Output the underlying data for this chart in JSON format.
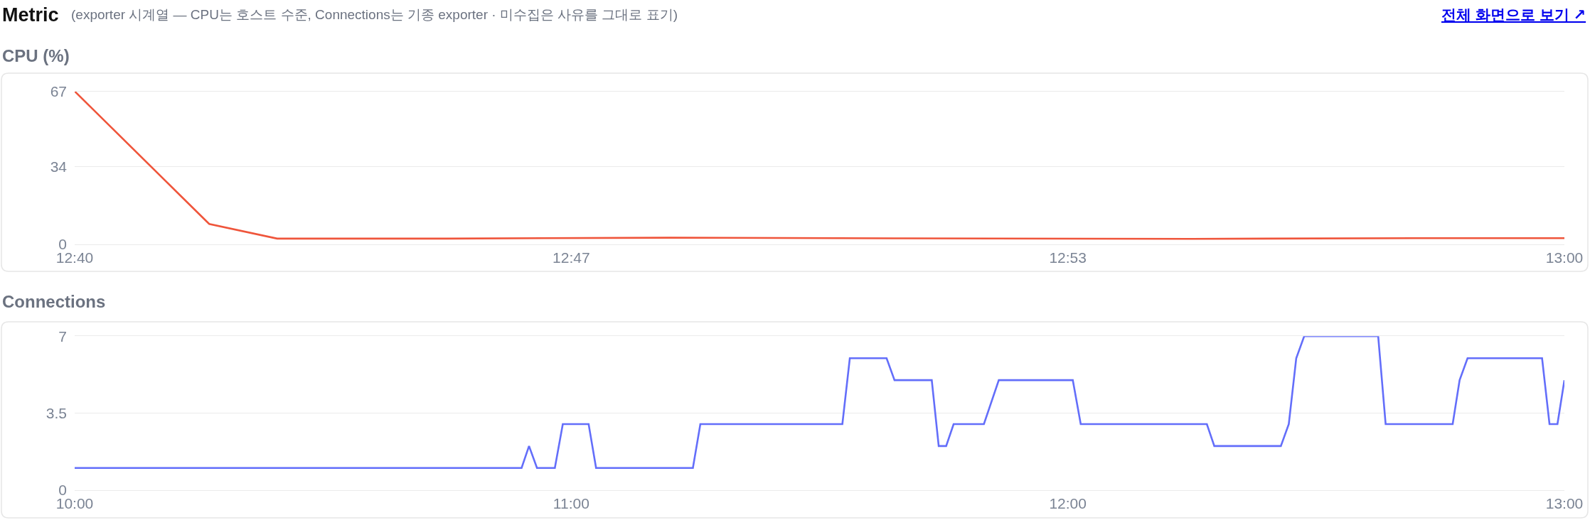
{
  "chart_data": [
    {
      "type": "other",
      "title": "Metric",
      "subtitle": "(exporter 시계열 — CPU는 호스트 수준, Connections는 기종 exporter · 미수집은 사유를 그대로 표기)",
      "annotations": [
        "전체 화면으로 보기 ↗"
      ]
    },
    {
      "type": "line",
      "title": "CPU (%)",
      "x": [
        12.6667,
        12.6968,
        12.712,
        12.75,
        12.8,
        12.85,
        12.9167,
        12.9667,
        13.0
      ],
      "values": [
        67,
        8.9,
        2.5,
        2.5,
        2.9,
        2.6,
        2.4,
        2.7,
        2.7
      ],
      "color": "#ef553b",
      "xlim": [
        12.6667,
        13.0
      ],
      "xticks": [
        {
          "value": 12.6667,
          "label": "12:40"
        },
        {
          "value": 12.7778,
          "label": "12:47"
        },
        {
          "value": 12.8889,
          "label": "12:53"
        },
        {
          "value": 13.0,
          "label": "13:00"
        }
      ],
      "ylim": [
        0,
        67
      ],
      "yticks": [
        0,
        34,
        67
      ],
      "grid": "y"
    },
    {
      "type": "line",
      "title": "Connections",
      "x": [
        10.0,
        10.9,
        10.915,
        10.931,
        10.967,
        10.983,
        11.035,
        11.05,
        11.245,
        11.26,
        11.546,
        11.561,
        11.635,
        11.651,
        11.726,
        11.74,
        11.755,
        11.77,
        11.831,
        11.861,
        12.01,
        12.026,
        12.28,
        12.295,
        12.429,
        12.445,
        12.46,
        12.476,
        12.625,
        12.64,
        12.775,
        12.789,
        12.805,
        12.955,
        12.97,
        12.986,
        13.0
      ],
      "values": [
        1,
        1,
        2,
        1,
        1,
        3,
        3,
        1,
        1,
        3,
        3,
        6,
        6,
        5,
        5,
        2,
        2,
        3,
        3,
        5,
        5,
        3,
        3,
        2,
        2,
        3,
        6,
        7,
        7,
        3,
        3,
        5,
        6,
        6,
        3,
        3,
        5
      ],
      "color": "#636efa",
      "xlim": [
        10.0,
        13.0
      ],
      "xticks": [
        {
          "value": 10,
          "label": "10:00"
        },
        {
          "value": 11,
          "label": "11:00"
        },
        {
          "value": 12,
          "label": "12:00"
        },
        {
          "value": 13,
          "label": "13:00"
        }
      ],
      "ylim": [
        0,
        7
      ],
      "yticks": [
        0,
        3.5,
        7
      ],
      "grid": "y"
    }
  ]
}
